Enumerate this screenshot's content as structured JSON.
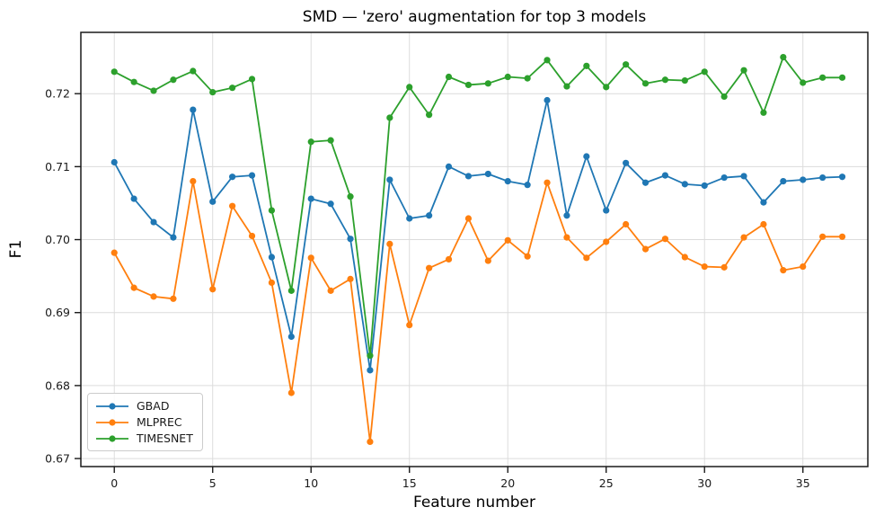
{
  "chart_data": {
    "type": "line",
    "title": "SMD — 'zero' augmentation for top 3 models",
    "xlabel": "Feature number",
    "ylabel": "F1",
    "x": [
      0,
      1,
      2,
      3,
      4,
      5,
      6,
      7,
      8,
      9,
      10,
      11,
      12,
      13,
      14,
      15,
      16,
      17,
      18,
      19,
      20,
      21,
      22,
      23,
      24,
      25,
      26,
      27,
      28,
      29,
      30,
      31,
      32,
      33,
      34,
      35,
      36,
      37
    ],
    "series": [
      {
        "name": "GBAD",
        "color": "#1f77b4",
        "values": [
          0.7106,
          0.7056,
          0.7024,
          0.7003,
          0.7178,
          0.7052,
          0.7086,
          0.7088,
          0.6976,
          0.6867,
          0.7056,
          0.7049,
          0.7001,
          0.6821,
          0.7082,
          0.7029,
          0.7033,
          0.71,
          0.7087,
          0.709,
          0.708,
          0.7075,
          0.7191,
          0.7033,
          0.7114,
          0.704,
          0.7105,
          0.7078,
          0.7088,
          0.7076,
          0.7074,
          0.7085,
          0.7087,
          0.7051,
          0.708,
          0.7082,
          0.7085,
          0.7086
        ]
      },
      {
        "name": "MLPREC",
        "color": "#ff7f0e",
        "values": [
          0.6982,
          0.6934,
          0.6922,
          0.6919,
          0.708,
          0.6932,
          0.7046,
          0.7005,
          0.6941,
          0.679,
          0.6975,
          0.693,
          0.6946,
          0.6723,
          0.6994,
          0.6883,
          0.6961,
          0.6973,
          0.7029,
          0.6971,
          0.6999,
          0.6977,
          0.7078,
          0.7003,
          0.6975,
          0.6997,
          0.7021,
          0.6987,
          0.7001,
          0.6976,
          0.6963,
          0.6962,
          0.7003,
          0.7021,
          0.6958,
          0.6963,
          0.7004,
          0.7004
        ]
      },
      {
        "name": "TIMESNET",
        "color": "#2ca02c",
        "values": [
          0.723,
          0.7216,
          0.7204,
          0.7219,
          0.7231,
          0.7202,
          0.7208,
          0.722,
          0.704,
          0.693,
          0.7134,
          0.7136,
          0.7059,
          0.6841,
          0.7167,
          0.7209,
          0.7171,
          0.7223,
          0.7212,
          0.7214,
          0.7223,
          0.7221,
          0.7246,
          0.721,
          0.7238,
          0.7209,
          0.724,
          0.7214,
          0.7219,
          0.7218,
          0.723,
          0.7196,
          0.7232,
          0.7174,
          0.725,
          0.7215,
          0.7222,
          0.7222
        ]
      }
    ],
    "x_ticks": [
      0,
      5,
      10,
      15,
      20,
      25,
      30,
      35
    ],
    "x_tick_labels": [
      "0",
      "5",
      "10",
      "15",
      "20",
      "25",
      "30",
      "35"
    ],
    "y_ticks": [
      0.67,
      0.68,
      0.69,
      0.7,
      0.71,
      0.72
    ],
    "y_tick_labels": [
      "0.67",
      "0.68",
      "0.69",
      "0.70",
      "0.71",
      "0.72"
    ],
    "xlim": [
      -1.7,
      38.3
    ],
    "ylim": [
      0.6689,
      0.7284
    ],
    "grid": true,
    "legend_position": "lower left",
    "colors": {
      "grid": "#dcdcdc",
      "spine": "#1a1a1a",
      "tick_label": "#1a1a1a"
    }
  }
}
